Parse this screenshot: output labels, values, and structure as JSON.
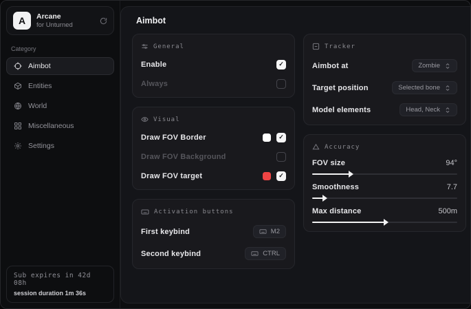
{
  "colors": {
    "swatch_white": "#ffffff",
    "swatch_red": "#ef4444"
  },
  "sidebar": {
    "brand": {
      "initial": "A",
      "title": "Arcane",
      "subtitle": "for Unturned"
    },
    "category_label": "Category",
    "items": [
      {
        "label": "Aimbot",
        "icon": "crosshair-icon",
        "selected": true
      },
      {
        "label": "Entities",
        "icon": "cube-icon",
        "selected": false
      },
      {
        "label": "World",
        "icon": "globe-icon",
        "selected": false
      },
      {
        "label": "Miscellaneous",
        "icon": "grid-icon",
        "selected": false
      },
      {
        "label": "Settings",
        "icon": "gear-icon",
        "selected": false
      }
    ],
    "status": {
      "line1": "Sub expires in 42d 08h",
      "line2": "session duration 1m 36s"
    }
  },
  "main": {
    "title": "Aimbot",
    "general": {
      "label": "General",
      "rows": [
        {
          "label": "Enable",
          "checked": true
        },
        {
          "label": "Always",
          "checked": false,
          "disabled": true
        }
      ]
    },
    "visual": {
      "label": "Visual",
      "rows": [
        {
          "label": "Draw FOV Border",
          "checked": true,
          "swatch": "#ffffff"
        },
        {
          "label": "Draw FOV Background",
          "checked": false,
          "disabled": true
        },
        {
          "label": "Draw FOV target",
          "checked": true,
          "swatch": "#ef4444"
        }
      ]
    },
    "activation": {
      "label": "Activation buttons",
      "rows": [
        {
          "label": "First keybind",
          "key": "M2"
        },
        {
          "label": "Second keybind",
          "key": "CTRL"
        }
      ]
    },
    "tracker": {
      "label": "Tracker",
      "rows": [
        {
          "label": "Aimbot at",
          "value": "Zombie"
        },
        {
          "label": "Target position",
          "value": "Selected bone"
        },
        {
          "label": "Model elements",
          "value": "Head, Neck"
        }
      ]
    },
    "accuracy": {
      "label": "Accuracy",
      "rows": [
        {
          "label": "FOV size",
          "value": "94°",
          "fill_pct": 26
        },
        {
          "label": "Smoothness",
          "value": "7.7",
          "fill_pct": 8
        },
        {
          "label": "Max distance",
          "value": "500m",
          "fill_pct": 50
        }
      ]
    }
  }
}
